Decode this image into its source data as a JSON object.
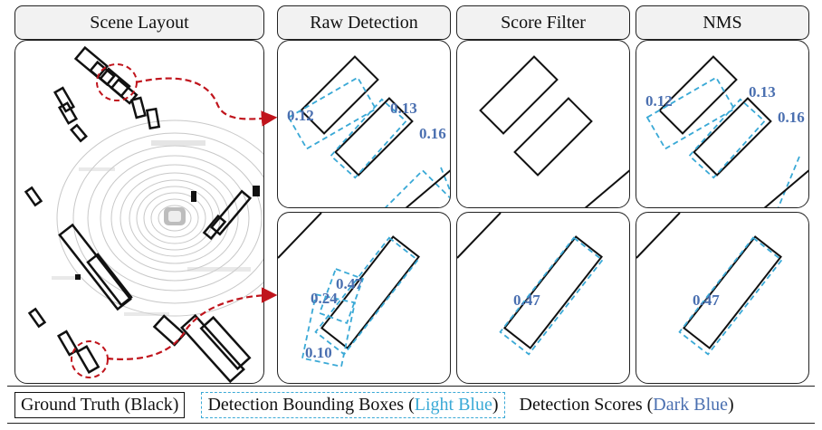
{
  "headers": {
    "scene": "Scene Layout",
    "raw": "Raw Detection",
    "filter": "Score Filter",
    "nms": "NMS"
  },
  "top_scores": {
    "a": "0.12",
    "b": "0.13",
    "c": "0.16"
  },
  "bottom_scores": {
    "a": "0.47",
    "b": "0.24",
    "c": "0.10"
  },
  "legend": {
    "gt": "Ground Truth (Black)",
    "det_prefix": "Detection Bounding Boxes (",
    "det_color": "Light Blue",
    "det_suffix": ")",
    "score_prefix": "Detection Scores (",
    "score_color": "Dark Blue",
    "score_suffix": ")"
  },
  "colors": {
    "gt": "#111111",
    "det": "#3aa9d6",
    "score": "#4a6fb0",
    "highlight": "#c0141c"
  }
}
